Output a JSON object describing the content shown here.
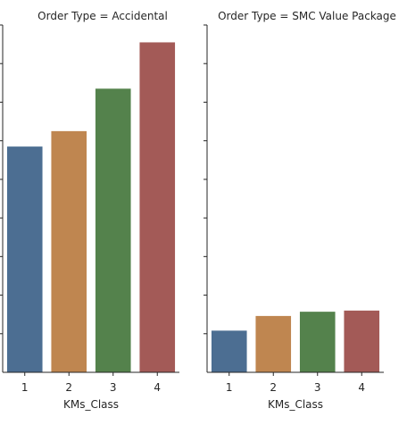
{
  "chart_data": [
    {
      "type": "bar",
      "title": "Order Type = Accidental",
      "xlabel": "KMs_Class",
      "ylabel": "",
      "categories": [
        "1",
        "2",
        "3",
        "4"
      ],
      "values": [
        5.85,
        6.25,
        7.35,
        8.55
      ],
      "ylim": [
        0,
        9
      ],
      "colors": [
        "#4c6e92",
        "#bf8650",
        "#54824c",
        "#a35a57"
      ],
      "grid": false,
      "y_tick_labels_visible": false
    },
    {
      "type": "bar",
      "title": "Order Type = SMC Value Package",
      "xlabel": "KMs_Class",
      "ylabel": "",
      "categories": [
        "1",
        "2",
        "3",
        "4"
      ],
      "values": [
        1.08,
        1.46,
        1.57,
        1.6
      ],
      "ylim": [
        0,
        9
      ],
      "colors": [
        "#4c6e92",
        "#bf8650",
        "#54824c",
        "#a35a57"
      ],
      "grid": false,
      "y_tick_labels_visible": false
    }
  ]
}
